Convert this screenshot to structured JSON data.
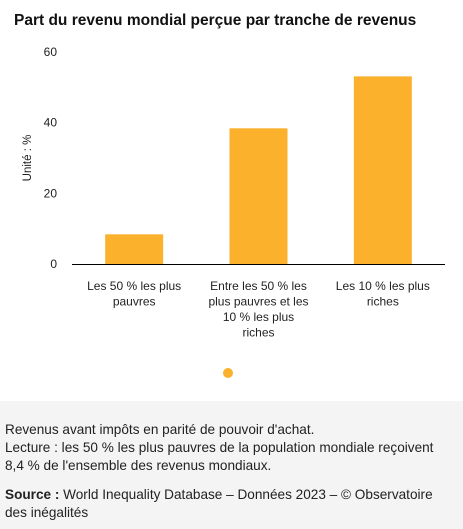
{
  "chart_data": {
    "type": "bar",
    "title": "Part du revenu mondial perçue par tranche de revenus",
    "ylabel": "Unité : %",
    "ylim": [
      0,
      60
    ],
    "yticks": [
      0,
      20,
      40,
      60
    ],
    "categories": [
      [
        "Les 50 % les plus",
        "pauvres"
      ],
      [
        "Entre les 50 % les",
        "plus pauvres et les",
        "10 % les plus",
        "riches"
      ],
      [
        "Les 10 % les plus",
        "riches"
      ]
    ],
    "values": [
      8.4,
      38.4,
      53.1
    ],
    "bar_color": "#fbb12b",
    "legend_dot_color": "#fbb12b",
    "grid": false
  },
  "notes": {
    "line1": "Revenus avant impôts en parité de pouvoir d'achat.",
    "line2": "Lecture : les 50 % les plus pauvres de la population mondiale reçoivent 8,4 % de l'ensemble des revenus mondiaux.",
    "source_label": "Source :",
    "source_text": " World Inequality Database – Données 2023 – © Observatoire des inégalités"
  },
  "colors": {
    "footer_background": "#f4f4f4",
    "axis": "#000000"
  }
}
